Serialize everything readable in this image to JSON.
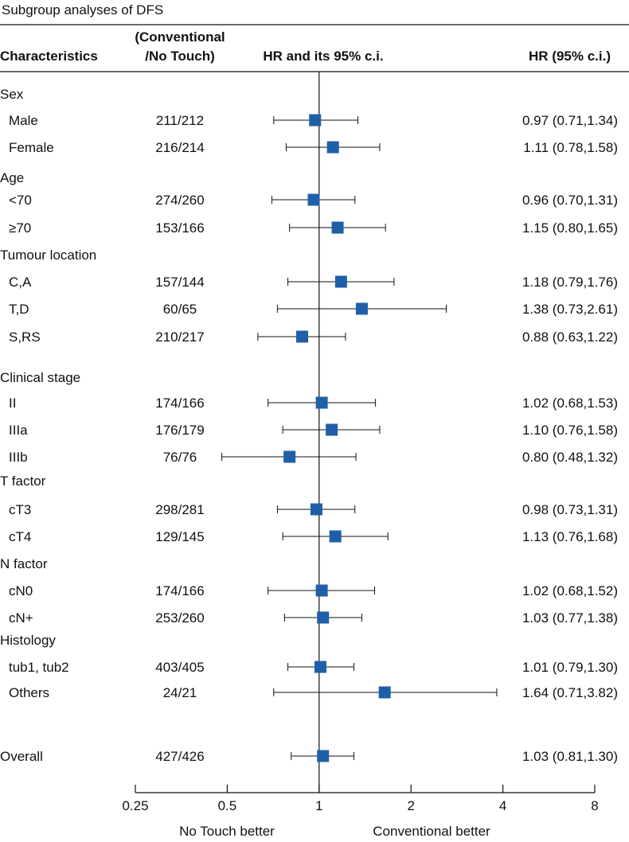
{
  "chart_data": {
    "type": "forest",
    "title": "Subgroup analyses of DFS",
    "headers": {
      "characteristics": "Characteristics",
      "counts_line1": "(Conventional",
      "counts_line2": "/No Touch)",
      "plot": "HR and its 95% c.i.",
      "hr": "HR (95% c.i.)"
    },
    "x_scale": "log2",
    "xlim": [
      0.25,
      8
    ],
    "reference_line": 1,
    "x_ticks": [
      {
        "value": 0.25,
        "label": "0.25"
      },
      {
        "value": 0.5,
        "label": "0.5"
      },
      {
        "value": 1,
        "label": "1"
      },
      {
        "value": 2,
        "label": "2"
      },
      {
        "value": 4,
        "label": "4"
      },
      {
        "value": 8,
        "label": "8"
      }
    ],
    "x_footer_left": "No Touch better",
    "x_footer_right": "Conventional better",
    "rows": [
      {
        "kind": "group",
        "label": "Sex"
      },
      {
        "kind": "item",
        "label": "Male",
        "counts": "211/212",
        "hr": 0.97,
        "lo": 0.71,
        "hi": 1.34,
        "hr_text": "0.97 (0.71,1.34)"
      },
      {
        "kind": "item",
        "label": "Female",
        "counts": "216/214",
        "hr": 1.11,
        "lo": 0.78,
        "hi": 1.58,
        "hr_text": "1.11 (0.78,1.58)"
      },
      {
        "kind": "group",
        "label": "Age"
      },
      {
        "kind": "item",
        "label": "<70",
        "counts": "274/260",
        "hr": 0.96,
        "lo": 0.7,
        "hi": 1.31,
        "hr_text": "0.96 (0.70,1.31)"
      },
      {
        "kind": "item",
        "label": "≥70",
        "counts": "153/166",
        "hr": 1.15,
        "lo": 0.8,
        "hi": 1.65,
        "hr_text": "1.15 (0.80,1.65)"
      },
      {
        "kind": "group",
        "label": "Tumour location"
      },
      {
        "kind": "item",
        "label": "C,A",
        "counts": "157/144",
        "hr": 1.18,
        "lo": 0.79,
        "hi": 1.76,
        "hr_text": "1.18 (0.79,1.76)"
      },
      {
        "kind": "item",
        "label": "T,D",
        "counts": "60/65",
        "hr": 1.38,
        "lo": 0.73,
        "hi": 2.61,
        "hr_text": "1.38 (0.73,2.61)"
      },
      {
        "kind": "item",
        "label": "S,RS",
        "counts": "210/217",
        "hr": 0.88,
        "lo": 0.63,
        "hi": 1.22,
        "hr_text": "0.88 (0.63,1.22)"
      },
      {
        "kind": "group",
        "label": "Clinical stage"
      },
      {
        "kind": "item",
        "label": "II",
        "counts": "174/166",
        "hr": 1.02,
        "lo": 0.68,
        "hi": 1.53,
        "hr_text": "1.02 (0.68,1.53)"
      },
      {
        "kind": "item",
        "label": "IIIa",
        "counts": "176/179",
        "hr": 1.1,
        "lo": 0.76,
        "hi": 1.58,
        "hr_text": "1.10 (0.76,1.58)"
      },
      {
        "kind": "item",
        "label": "IIIb",
        "counts": "76/76",
        "hr": 0.8,
        "lo": 0.48,
        "hi": 1.32,
        "hr_text": "0.80 (0.48,1.32)"
      },
      {
        "kind": "group",
        "label": "T factor"
      },
      {
        "kind": "item",
        "label": "cT3",
        "counts": "298/281",
        "hr": 0.98,
        "lo": 0.73,
        "hi": 1.31,
        "hr_text": "0.98 (0.73,1.31)"
      },
      {
        "kind": "item",
        "label": "cT4",
        "counts": "129/145",
        "hr": 1.13,
        "lo": 0.76,
        "hi": 1.68,
        "hr_text": "1.13 (0.76,1.68)"
      },
      {
        "kind": "group",
        "label": "N factor"
      },
      {
        "kind": "item",
        "label": "cN0",
        "counts": "174/166",
        "hr": 1.02,
        "lo": 0.68,
        "hi": 1.52,
        "hr_text": "1.02 (0.68,1.52)"
      },
      {
        "kind": "item",
        "label": "cN+",
        "counts": "253/260",
        "hr": 1.03,
        "lo": 0.77,
        "hi": 1.38,
        "hr_text": "1.03 (0.77,1.38)"
      },
      {
        "kind": "group",
        "label": "Histology"
      },
      {
        "kind": "item",
        "label": "tub1, tub2",
        "counts": "403/405",
        "hr": 1.01,
        "lo": 0.79,
        "hi": 1.3,
        "hr_text": "1.01 (0.79,1.30)"
      },
      {
        "kind": "item",
        "label": "Others",
        "counts": "24/21",
        "hr": 1.64,
        "lo": 0.71,
        "hi": 3.82,
        "hr_text": "1.64 (0.71,3.82)"
      },
      {
        "kind": "overall",
        "label": "Overall",
        "counts": "427/426",
        "hr": 1.03,
        "lo": 0.81,
        "hi": 1.3,
        "hr_text": "1.03 (0.81,1.30)"
      }
    ],
    "colors": {
      "marker": "#1f5fa8",
      "line": "#111111"
    }
  }
}
